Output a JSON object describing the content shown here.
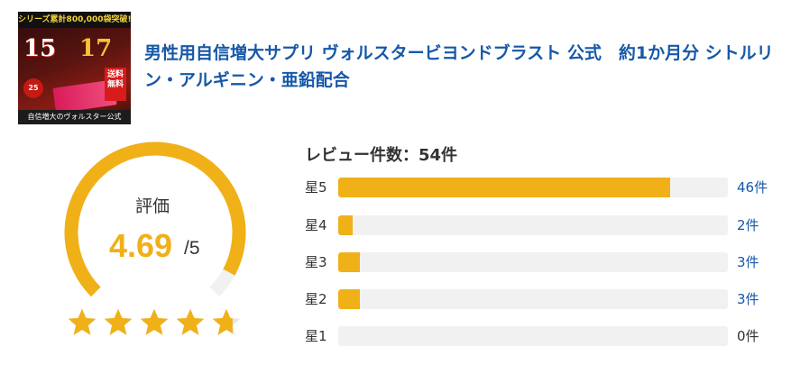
{
  "product": {
    "title": "男性用自信増大サプリ ヴォルスタービヨンドブラスト 公式　約1か月分 シトルリン・アルギニン・亜鉛配合",
    "thumbnail": {
      "top_banner": "シリーズ累計800,000袋突破!!",
      "num_left": "15",
      "num_right": "17",
      "badge": "送料無料",
      "circle": "25",
      "bottom_banner": "自信増大のヴォルスター公式"
    }
  },
  "rating": {
    "label": "評価",
    "value": "4.69",
    "max": "/5",
    "score": 4.69,
    "out_of": 5
  },
  "reviews": {
    "count_label": "レビュー件数：54件",
    "total": 54,
    "bars": [
      {
        "label": "星5",
        "count": 46,
        "count_label": "46件"
      },
      {
        "label": "星4",
        "count": 2,
        "count_label": "2件"
      },
      {
        "label": "星3",
        "count": 3,
        "count_label": "3件"
      },
      {
        "label": "星2",
        "count": 3,
        "count_label": "3件"
      },
      {
        "label": "星1",
        "count": 0,
        "count_label": "0件"
      }
    ]
  },
  "colors": {
    "accent": "#f0b018",
    "track": "#f1f1f1",
    "link": "#1658a9",
    "text": "#333333",
    "star_empty": "#e6e6e6"
  },
  "icons": {
    "star": "star-icon"
  }
}
